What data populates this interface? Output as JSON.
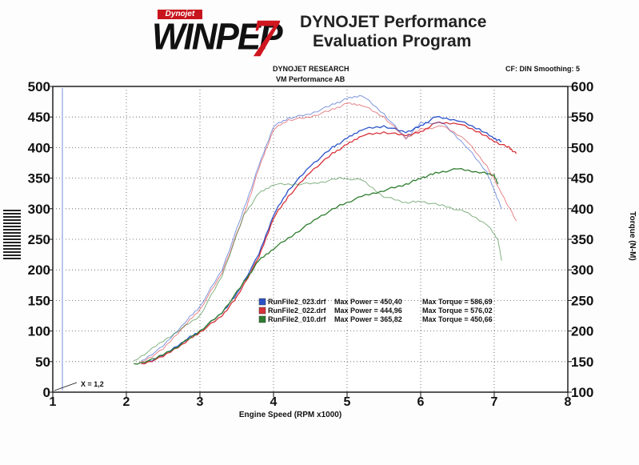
{
  "header": {
    "brand_small": "Dynojet",
    "logo_text": "WINPEP",
    "logo_number": "7",
    "title_line1": "DYNOJET Performance",
    "title_line2": "Evaluation Program",
    "org_line1": "DYNOJET RESEARCH",
    "org_line2": "VM Performance AB",
    "settings": "CF: DIN  Smoothing: 5"
  },
  "colors": {
    "blue": "#2a52c8",
    "red": "#d8323a",
    "green": "#2e7d2e"
  },
  "chart_data": {
    "type": "line",
    "xlabel": "Engine Speed (RPM x1000)",
    "ylabel_left": "",
    "ylabel_right": "Torque (N-M)",
    "xlim": [
      1,
      8
    ],
    "ylim_left": [
      0,
      500
    ],
    "ylim_right": [
      100,
      600
    ],
    "xticks": [
      1,
      2,
      3,
      4,
      5,
      6,
      7,
      8
    ],
    "yticks_left": [
      0,
      50,
      100,
      150,
      200,
      250,
      300,
      350,
      400,
      450,
      500
    ],
    "yticks_right": [
      100,
      150,
      200,
      250,
      300,
      350,
      400,
      450,
      500,
      550,
      600
    ],
    "grid": true,
    "annotation": "X = 1,2",
    "legend_placement": "center",
    "legend": [
      {
        "file": "RunFile2_023.drf",
        "power": "Max Power = 450,40",
        "torque": "Max Torque = 586,69",
        "color": "#2a52c8"
      },
      {
        "file": "RunFile2_022.drf",
        "power": "Max Power = 444,96",
        "torque": "Max Torque = 576,02",
        "color": "#d8323a"
      },
      {
        "file": "RunFile2_010.drf",
        "power": "Max Power = 365,82",
        "torque": "Max Torque = 450,66",
        "color": "#2e7d2e"
      }
    ],
    "series": [
      {
        "name": "RunFile2_023.drf",
        "axis": "left",
        "color": "#2a52c8",
        "x": [
          2.2,
          2.5,
          2.8,
          3.0,
          3.3,
          3.5,
          3.8,
          4.0,
          4.2,
          4.5,
          4.8,
          5.0,
          5.2,
          5.5,
          5.8,
          6.0,
          6.2,
          6.5,
          6.8,
          7.0,
          7.1
        ],
        "y": [
          45,
          60,
          85,
          100,
          130,
          160,
          225,
          290,
          330,
          370,
          400,
          415,
          430,
          435,
          425,
          435,
          450,
          445,
          430,
          415,
          410
        ]
      },
      {
        "name": "RunFile2_022.drf",
        "axis": "left",
        "color": "#d8323a",
        "x": [
          2.2,
          2.5,
          2.8,
          3.0,
          3.3,
          3.5,
          3.8,
          4.0,
          4.2,
          4.5,
          4.8,
          5.0,
          5.2,
          5.5,
          5.8,
          6.0,
          6.2,
          6.5,
          6.8,
          7.0,
          7.2,
          7.3
        ],
        "y": [
          45,
          58,
          82,
          98,
          125,
          155,
          220,
          285,
          320,
          360,
          390,
          405,
          420,
          425,
          420,
          425,
          440,
          440,
          425,
          410,
          400,
          390
        ]
      },
      {
        "name": "RunFile2_010.drf",
        "axis": "left",
        "color": "#2e7d2e",
        "x": [
          2.1,
          2.4,
          2.7,
          3.0,
          3.3,
          3.6,
          3.8,
          4.0,
          4.3,
          4.6,
          4.9,
          5.2,
          5.5,
          5.8,
          6.0,
          6.2,
          6.5,
          6.8,
          7.0,
          7.05
        ],
        "y": [
          45,
          55,
          75,
          100,
          130,
          180,
          215,
          235,
          260,
          285,
          305,
          320,
          330,
          340,
          350,
          358,
          365,
          360,
          355,
          340
        ]
      },
      {
        "name": "RunFile2_023.drf",
        "axis": "right",
        "color": "#2a52c8",
        "light": true,
        "x": [
          2.2,
          2.5,
          2.8,
          3.0,
          3.3,
          3.6,
          3.8,
          4.0,
          4.2,
          4.5,
          4.8,
          5.0,
          5.2,
          5.5,
          5.8,
          6.0,
          6.3,
          6.6,
          6.9,
          7.0,
          7.1
        ],
        "y": [
          150,
          175,
          215,
          240,
          300,
          400,
          470,
          535,
          548,
          555,
          570,
          580,
          586,
          555,
          515,
          540,
          540,
          505,
          460,
          430,
          400
        ]
      },
      {
        "name": "RunFile2_022.drf",
        "axis": "right",
        "color": "#d8323a",
        "light": true,
        "x": [
          2.2,
          2.5,
          2.8,
          3.0,
          3.3,
          3.6,
          3.8,
          4.0,
          4.2,
          4.5,
          4.8,
          5.0,
          5.2,
          5.5,
          5.8,
          6.0,
          6.3,
          6.6,
          6.9,
          7.1,
          7.3
        ],
        "y": [
          148,
          170,
          210,
          235,
          295,
          390,
          465,
          530,
          545,
          550,
          562,
          572,
          570,
          550,
          515,
          530,
          535,
          515,
          470,
          425,
          380
        ]
      },
      {
        "name": "RunFile2_010.drf",
        "axis": "right",
        "color": "#2e7d2e",
        "light": true,
        "x": [
          2.1,
          2.4,
          2.7,
          3.0,
          3.3,
          3.6,
          3.8,
          4.0,
          4.3,
          4.6,
          4.9,
          5.2,
          5.5,
          5.8,
          6.0,
          6.3,
          6.6,
          6.9,
          7.05,
          7.1
        ],
        "y": [
          150,
          175,
          200,
          225,
          290,
          390,
          425,
          440,
          440,
          442,
          450,
          447,
          420,
          410,
          412,
          405,
          395,
          375,
          350,
          315
        ]
      }
    ]
  }
}
